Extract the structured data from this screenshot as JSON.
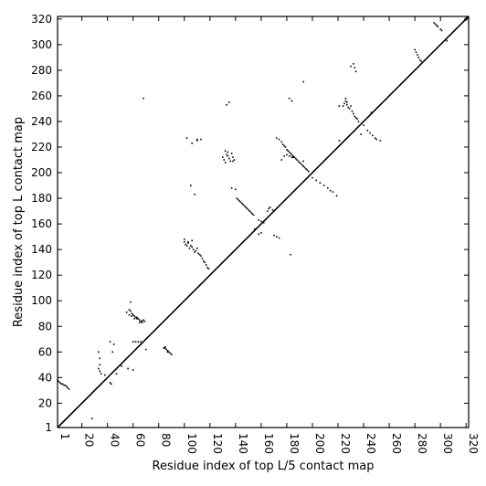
{
  "chart_data": {
    "type": "scatter",
    "title": "",
    "xlabel": "Residue index of top L/5 contact map",
    "ylabel": "Residue index of top L contact map",
    "xlim": [
      1,
      322
    ],
    "ylim": [
      1,
      322
    ],
    "x_ticks": [
      1,
      20,
      40,
      60,
      80,
      100,
      120,
      140,
      160,
      180,
      200,
      220,
      240,
      260,
      280,
      300,
      320
    ],
    "x_tick_labels": [
      "1",
      "20",
      "40",
      "60",
      "80",
      "100",
      "120",
      "140",
      "160",
      "180",
      "200",
      "220",
      "240",
      "260",
      "280",
      "300",
      "320"
    ],
    "y_ticks": [
      1,
      20,
      40,
      60,
      80,
      100,
      120,
      140,
      160,
      180,
      200,
      220,
      240,
      260,
      280,
      300,
      320
    ],
    "y_tick_labels": [
      "1",
      "20",
      "40",
      "60",
      "80",
      "100",
      "120",
      "140",
      "160",
      "180",
      "200",
      "220",
      "240",
      "260",
      "280",
      "300",
      "320"
    ],
    "diagonal": true,
    "grid": false,
    "marker_color": "#000000",
    "series": [
      {
        "values": "contacts",
        "x": [
          1,
          2,
          3,
          4,
          5,
          6,
          7,
          8,
          9,
          10,
          33,
          34,
          35,
          33,
          34,
          38,
          34,
          42,
          43,
          42,
          45,
          44,
          51,
          28,
          68,
          57,
          58,
          59,
          60,
          61,
          62,
          63,
          64,
          65,
          66,
          67,
          68,
          69,
          57,
          59,
          61,
          63,
          65,
          67,
          58,
          60,
          62,
          64,
          66,
          60,
          56,
          55,
          47,
          84,
          85,
          86,
          87,
          88,
          89,
          90,
          85,
          87,
          70,
          100,
          101,
          102,
          103,
          104,
          105,
          106,
          107,
          108,
          109,
          110,
          111,
          112,
          113,
          114,
          115,
          116,
          117,
          118,
          119,
          100,
          103,
          106,
          105,
          108,
          110,
          130,
          131,
          132,
          133,
          134,
          135,
          136,
          137,
          138,
          139,
          140,
          141,
          142,
          143,
          144,
          145,
          146,
          147,
          148,
          149,
          150,
          151,
          152,
          153,
          154,
          133,
          135,
          137,
          132,
          134,
          138,
          155,
          158,
          160,
          162,
          165,
          166,
          167,
          169,
          158,
          160,
          170,
          172,
          174,
          172,
          174,
          176,
          177,
          178,
          179,
          180,
          181,
          182,
          183,
          184,
          185,
          186,
          187,
          188,
          189,
          190,
          191,
          192,
          193,
          194,
          195,
          196,
          197,
          178,
          180,
          182,
          184,
          176,
          182,
          184,
          193,
          200,
          203,
          206,
          209,
          212,
          214,
          216,
          219,
          224,
          225,
          226,
          227,
          228,
          229,
          230,
          231,
          232,
          233,
          234,
          235,
          236,
          230,
          232,
          233,
          234,
          226,
          238,
          240,
          243,
          245,
          247,
          249,
          250,
          253,
          280,
          281,
          282,
          283,
          284,
          285,
          295,
          296,
          297,
          298,
          300,
          301,
          305,
          221,
          227,
          246,
          185,
          193,
          221,
          102,
          106,
          110,
          183,
          113
        ],
        "y": [
          38,
          37,
          36,
          35,
          35,
          34,
          34,
          33,
          32,
          31,
          60,
          45,
          43,
          47,
          50,
          42,
          55,
          36,
          35,
          68,
          66,
          60,
          49,
          8,
          258,
          93,
          92,
          90,
          89,
          88,
          87,
          86,
          86,
          85,
          84,
          84,
          85,
          84,
          89,
          88,
          86,
          87,
          83,
          83,
          99,
          68,
          68,
          68,
          68,
          46,
          47,
          91,
          43,
          63,
          63,
          62,
          61,
          60,
          59,
          58,
          64,
          60,
          62,
          146,
          144,
          143,
          145,
          141,
          143,
          142,
          140,
          138,
          139,
          141,
          137,
          136,
          135,
          133,
          131,
          130,
          128,
          126,
          125,
          148,
          146,
          147,
          190,
          183,
          226,
          212,
          210,
          208,
          214,
          213,
          211,
          209,
          215,
          212,
          210,
          187,
          180,
          179,
          178,
          177,
          176,
          175,
          174,
          173,
          172,
          171,
          170,
          169,
          168,
          167,
          253,
          255,
          188,
          217,
          216,
          209,
          156,
          163,
          162,
          161,
          170,
          172,
          173,
          171,
          152,
          153,
          151,
          150,
          149,
          227,
          226,
          224,
          222,
          221,
          220,
          218,
          217,
          216,
          215,
          214,
          213,
          212,
          211,
          210,
          209,
          208,
          207,
          206,
          205,
          204,
          203,
          202,
          201,
          213,
          214,
          213,
          212,
          210,
          258,
          256,
          271,
          196,
          194,
          192,
          190,
          188,
          186,
          185,
          182,
          252,
          254,
          256,
          253,
          251,
          250,
          252,
          248,
          246,
          244,
          243,
          242,
          240,
          283,
          285,
          282,
          279,
          258,
          230,
          237,
          233,
          231,
          229,
          227,
          226,
          225,
          296,
          294,
          292,
          290,
          288,
          287,
          317,
          316,
          315,
          314,
          312,
          311,
          303,
          252,
          255,
          247,
          212,
          209,
          225,
          227,
          223,
          225,
          136,
          226
        ]
      }
    ]
  }
}
